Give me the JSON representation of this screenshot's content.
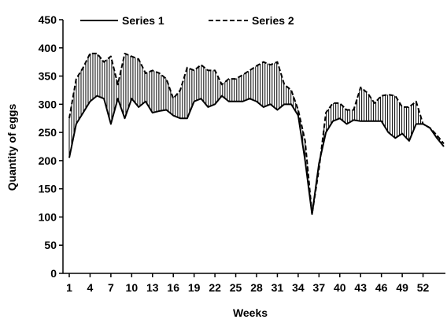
{
  "chart_data": {
    "type": "line",
    "xlabel": "Weeks",
    "ylabel": "Quantity of eggs",
    "xlim": [
      1,
      55
    ],
    "ylim": [
      0,
      450
    ],
    "yticks": [
      0,
      50,
      100,
      150,
      200,
      250,
      300,
      350,
      400,
      450
    ],
    "xticks": [
      1,
      4,
      7,
      10,
      13,
      16,
      19,
      22,
      25,
      28,
      31,
      34,
      37,
      40,
      43,
      46,
      49,
      52
    ],
    "grid": false,
    "legend_position": "top",
    "fill_between_series": "vertical-hatch",
    "x": [
      1,
      2,
      3,
      4,
      5,
      6,
      7,
      8,
      9,
      10,
      11,
      12,
      13,
      14,
      15,
      16,
      17,
      18,
      19,
      20,
      21,
      22,
      23,
      24,
      25,
      26,
      27,
      28,
      29,
      30,
      31,
      32,
      33,
      34,
      35,
      36,
      37,
      38,
      39,
      40,
      41,
      42,
      43,
      44,
      45,
      46,
      47,
      48,
      49,
      50,
      51,
      52,
      53,
      54,
      55
    ],
    "series": [
      {
        "name": "Series 1",
        "style": "solid",
        "values": [
          205,
          265,
          285,
          305,
          315,
          310,
          265,
          310,
          275,
          310,
          295,
          305,
          285,
          288,
          290,
          280,
          275,
          275,
          305,
          310,
          295,
          300,
          315,
          305,
          305,
          305,
          310,
          305,
          295,
          300,
          290,
          300,
          300,
          280,
          200,
          105,
          195,
          250,
          270,
          275,
          265,
          272,
          270,
          270,
          270,
          270,
          250,
          240,
          248,
          235,
          265,
          265,
          258,
          240,
          225
        ]
      },
      {
        "name": "Series 2",
        "style": "dashed",
        "values": [
          275,
          345,
          365,
          390,
          390,
          375,
          385,
          335,
          390,
          385,
          380,
          355,
          360,
          355,
          345,
          310,
          325,
          365,
          360,
          370,
          360,
          360,
          335,
          345,
          345,
          352,
          360,
          368,
          375,
          370,
          375,
          335,
          325,
          290,
          235,
          105,
          185,
          285,
          302,
          302,
          290,
          290,
          330,
          320,
          302,
          315,
          317,
          315,
          295,
          295,
          305,
          265,
          258,
          245,
          230
        ]
      }
    ]
  }
}
